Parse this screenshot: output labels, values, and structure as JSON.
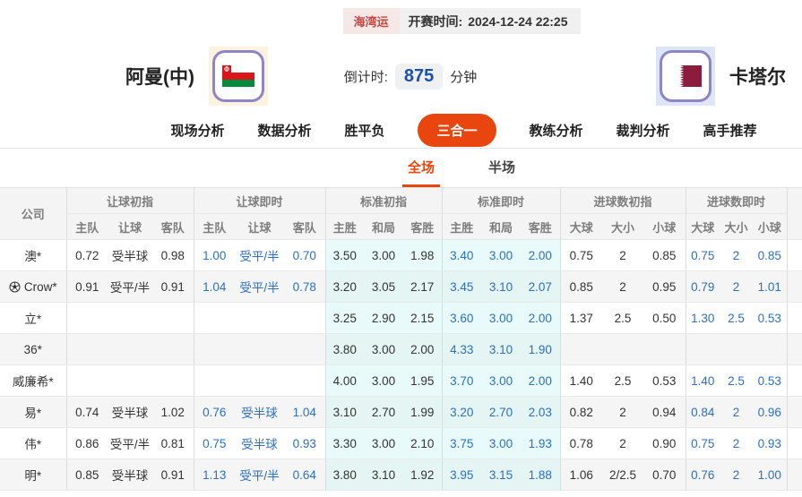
{
  "top_bar": {
    "league_badge": "海湾运",
    "kickoff_label": "开赛时间:",
    "kickoff_value": "2024-12-24 22:25"
  },
  "match": {
    "home_name": "阿曼(中)",
    "away_name": "卡塔尔",
    "countdown_label": "倒计时:",
    "countdown_value": "875",
    "countdown_unit": "分钟"
  },
  "nav": {
    "tabs": [
      {
        "label": "现场分析",
        "active": false
      },
      {
        "label": "数据分析",
        "active": false
      },
      {
        "label": "胜平负",
        "active": false
      },
      {
        "label": "三合一",
        "active": true
      },
      {
        "label": "教练分析",
        "active": false
      },
      {
        "label": "裁判分析",
        "active": false
      },
      {
        "label": "高手推荐",
        "active": false
      }
    ]
  },
  "subtabs": {
    "tabs": [
      {
        "label": "全场",
        "active": true
      },
      {
        "label": "半场",
        "active": false
      }
    ]
  },
  "odds_table": {
    "company_header": "公司",
    "groups": [
      {
        "label": "让球初指",
        "cols": [
          "主队",
          "让球",
          "客队"
        ],
        "live": false,
        "cyan": false
      },
      {
        "label": "让球即时",
        "cols": [
          "主队",
          "让球",
          "客队"
        ],
        "live": true,
        "cyan": false
      },
      {
        "label": "标准初指",
        "cols": [
          "主胜",
          "和局",
          "客胜"
        ],
        "live": false,
        "cyan": true
      },
      {
        "label": "标准即时",
        "cols": [
          "主胜",
          "和局",
          "客胜"
        ],
        "live": true,
        "cyan": true
      },
      {
        "label": "进球数初指",
        "cols": [
          "大球",
          "大小",
          "小球"
        ],
        "live": false,
        "cyan": false
      },
      {
        "label": "进球数即时",
        "cols": [
          "大球",
          "大小",
          "小球"
        ],
        "live": true,
        "cyan": false
      }
    ],
    "rows": [
      {
        "company": "澳*",
        "icon": false,
        "cells": [
          "0.72",
          "受半球",
          "0.98",
          "1.00",
          "受平/半",
          "0.70",
          "3.50",
          "3.00",
          "1.98",
          "3.40",
          "3.00",
          "2.00",
          "0.75",
          "2",
          "0.85",
          "0.75",
          "2",
          "0.85"
        ]
      },
      {
        "company": "Crow*",
        "icon": true,
        "cells": [
          "0.91",
          "受平/半",
          "0.91",
          "1.04",
          "受平/半",
          "0.78",
          "3.20",
          "3.05",
          "2.17",
          "3.45",
          "3.10",
          "2.07",
          "0.85",
          "2",
          "0.95",
          "0.79",
          "2",
          "1.01"
        ]
      },
      {
        "company": "立*",
        "icon": false,
        "cells": [
          "",
          "",
          "",
          "",
          "",
          "",
          "3.25",
          "2.90",
          "2.15",
          "3.60",
          "3.00",
          "2.00",
          "1.37",
          "2.5",
          "0.50",
          "1.30",
          "2.5",
          "0.53"
        ]
      },
      {
        "company": "36*",
        "icon": false,
        "cells": [
          "",
          "",
          "",
          "",
          "",
          "",
          "3.80",
          "3.00",
          "2.00",
          "4.33",
          "3.10",
          "1.90",
          "",
          "",
          "",
          "",
          "",
          ""
        ]
      },
      {
        "company": "威廉希*",
        "icon": false,
        "cells": [
          "",
          "",
          "",
          "",
          "",
          "",
          "4.00",
          "3.00",
          "1.95",
          "3.70",
          "3.00",
          "2.00",
          "1.40",
          "2.5",
          "0.53",
          "1.40",
          "2.5",
          "0.53"
        ]
      },
      {
        "company": "易*",
        "icon": false,
        "cells": [
          "0.74",
          "受半球",
          "1.02",
          "0.76",
          "受半球",
          "1.04",
          "3.10",
          "2.70",
          "1.99",
          "3.20",
          "2.70",
          "2.03",
          "0.82",
          "2",
          "0.94",
          "0.84",
          "2",
          "0.96"
        ]
      },
      {
        "company": "伟*",
        "icon": false,
        "cells": [
          "0.86",
          "受平/半",
          "0.81",
          "0.75",
          "受半球",
          "0.93",
          "3.30",
          "3.00",
          "2.10",
          "3.75",
          "3.00",
          "1.93",
          "0.78",
          "2",
          "0.90",
          "0.75",
          "2",
          "0.93"
        ]
      },
      {
        "company": "明*",
        "icon": false,
        "cells": [
          "0.85",
          "受半球",
          "0.91",
          "1.13",
          "受平/半",
          "0.64",
          "3.80",
          "3.10",
          "1.92",
          "3.95",
          "3.15",
          "1.88",
          "1.06",
          "2/2.5",
          "0.70",
          "0.76",
          "2",
          "1.00"
        ]
      }
    ]
  },
  "colors": {
    "accent": "#e8450f",
    "live_blue": "#2b6fc6",
    "countdown_blue": "#1c4fb0",
    "cyan_bg": "#e8faf9",
    "badge_red": "#c24642",
    "qatar_maroon": "#8d1b3d",
    "oman_red": "#db161b",
    "oman_green": "#008a3e",
    "flag_border": "#8e85c8"
  }
}
